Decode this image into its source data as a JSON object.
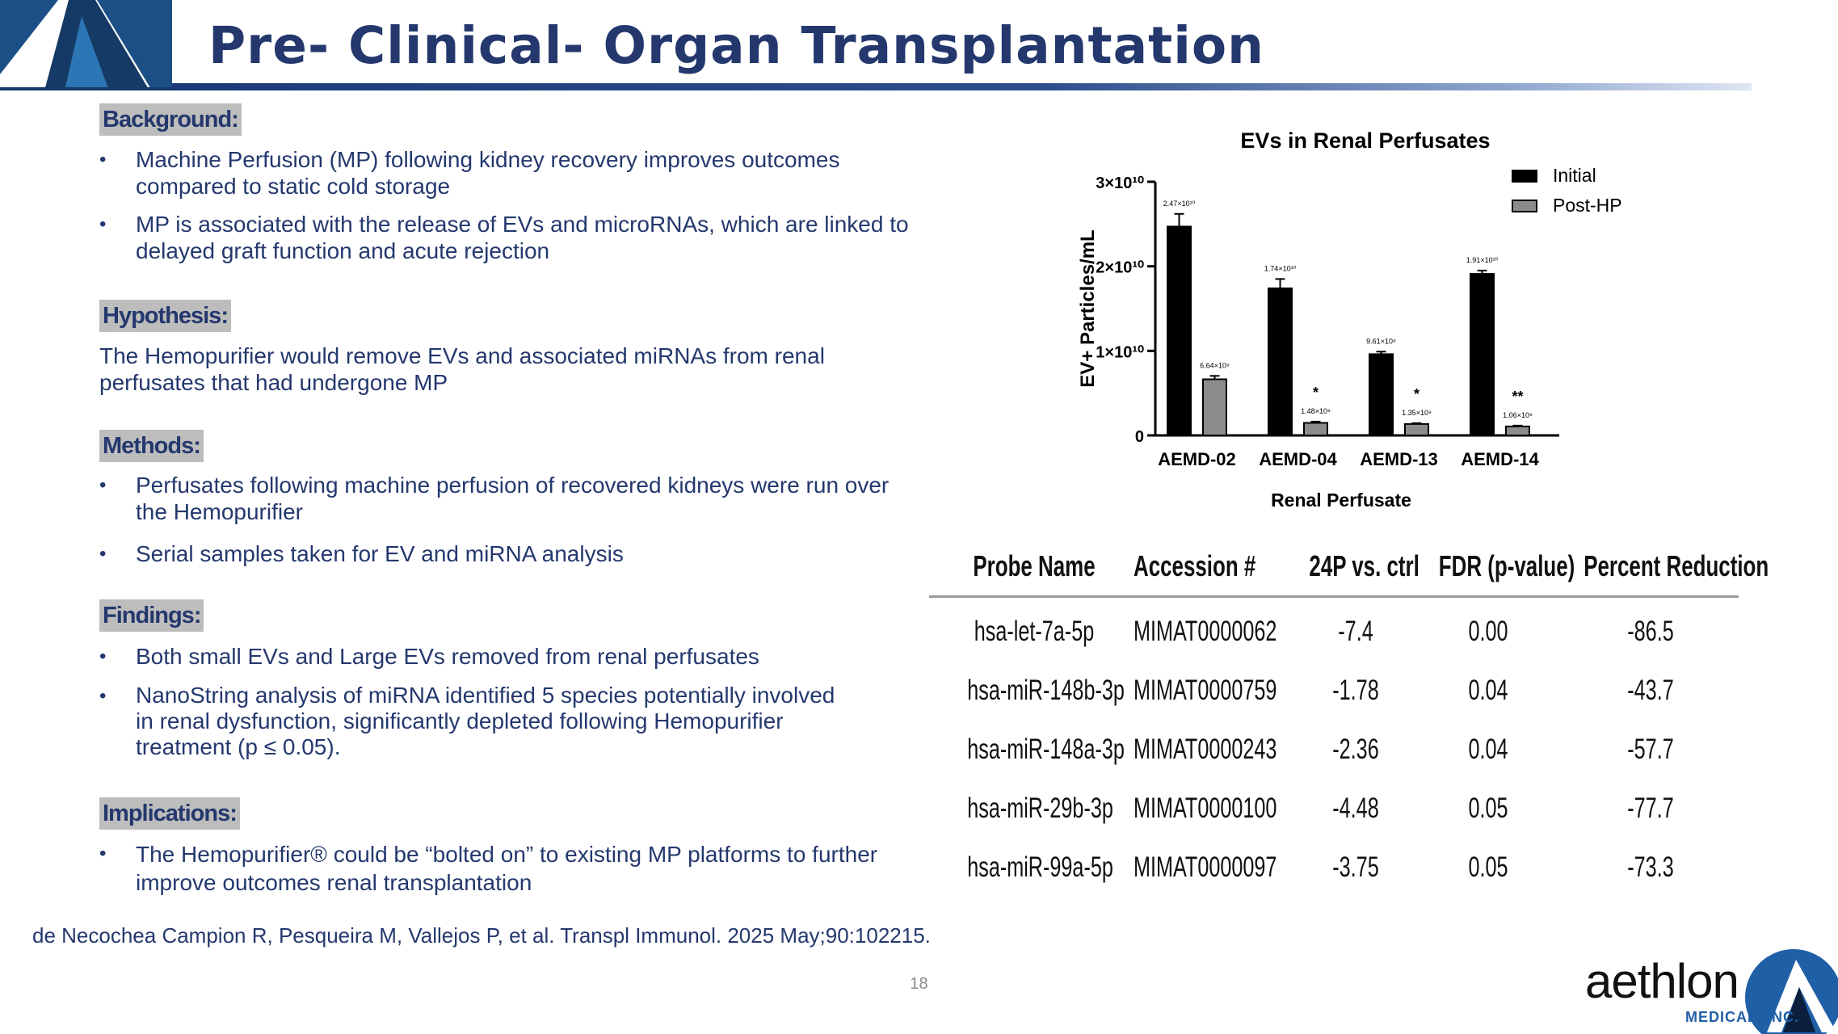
{
  "slide": {
    "title": "Pre- Clinical- Organ Transplantation",
    "page_number": "18",
    "citation": "de Necochea Campion R, Pesqueira M, Vallejos P, et al. Transpl Immunol. 2025 May;90:102215."
  },
  "left": {
    "bullet_glyph": "•",
    "background": {
      "heading": "Background:",
      "bullets": [
        "Machine Perfusion (MP) following kidney recovery improves outcomes compared to static cold storage",
        "MP is associated with the release of EVs and microRNAs, which are linked to delayed graft function and acute rejection"
      ]
    },
    "hypothesis": {
      "heading": "Hypothesis:",
      "text": "The Hemopurifier would remove EVs and associated miRNAs from renal perfusates that had undergone MP"
    },
    "methods": {
      "heading": "Methods:",
      "bullets": [
        "Perfusates following machine perfusion of recovered kidneys were run over the Hemopurifier",
        "Serial samples taken for EV and miRNA analysis"
      ]
    },
    "findings": {
      "heading": "Findings:",
      "bullets": [
        "Both small EVs and Large EVs removed from renal perfusates",
        "NanoString analysis of miRNA identified 5 species potentially involved in renal dysfunction, significantly depleted following Hemopurifier treatment (p ≤ 0.05)."
      ]
    },
    "implications": {
      "heading": "Implications:",
      "bullets": [
        "The Hemopurifier® could be “bolted on” to existing MP platforms to further improve outcomes renal transplantation"
      ]
    }
  },
  "chart_data": {
    "type": "bar",
    "title": "EVs in Renal Perfusates",
    "xlabel": "Renal Perfusate",
    "ylabel": "EV+ Particles/mL",
    "categories": [
      "AEMD-02",
      "AEMD-04",
      "AEMD-13",
      "AEMD-14"
    ],
    "ylim": [
      0,
      30000000000
    ],
    "yticks": [
      0,
      10000000000,
      20000000000,
      30000000000
    ],
    "ytick_labels": [
      "0",
      "1×10¹⁰",
      "2×10¹⁰",
      "3×10¹⁰"
    ],
    "series": [
      {
        "name": "Initial",
        "color": "#000000",
        "values": [
          24700000000,
          17400000000,
          9610000000,
          19100000000
        ],
        "error": [
          1500000000,
          1100000000,
          300000000,
          400000000
        ],
        "labels": [
          "2.47×10¹⁰",
          "1.74×10¹⁰",
          "9.61×10⁹",
          "1.91×10¹⁰"
        ]
      },
      {
        "name": "Post-HP",
        "color": "#8c8c8c",
        "values": [
          6640000000,
          1480000000,
          1350000000,
          1060000000
        ],
        "error": [
          400000000,
          150000000,
          100000000,
          100000000
        ],
        "labels": [
          "6.64×10⁹",
          "1.48×10⁹",
          "1.35×10⁹",
          "1.06×10⁹"
        ]
      }
    ],
    "significance": [
      "",
      "*",
      "*",
      "**"
    ],
    "legend_position": "top-right"
  },
  "table": {
    "headers": [
      "Probe Name",
      "Accession #",
      "24P vs. ctrl",
      "FDR (p-value)",
      "Percent Reduction"
    ],
    "rows": [
      [
        "hsa-let-7a-5p",
        "MIMAT0000062",
        "-7.4",
        "0.00",
        "-86.5"
      ],
      [
        "hsa-miR-148b-3p",
        "MIMAT0000759",
        "-1.78",
        "0.04",
        "-43.7"
      ],
      [
        "hsa-miR-148a-3p",
        "MIMAT0000243",
        "-2.36",
        "0.04",
        "-57.7"
      ],
      [
        "hsa-miR-29b-3p",
        "MIMAT0000100",
        "-4.48",
        "0.05",
        "-77.7"
      ],
      [
        "hsa-miR-99a-5p",
        "MIMAT0000097",
        "-3.75",
        "0.05",
        "-73.3"
      ]
    ]
  },
  "logo": {
    "word": "aethlon",
    "sub": "MEDICAL, INC."
  }
}
